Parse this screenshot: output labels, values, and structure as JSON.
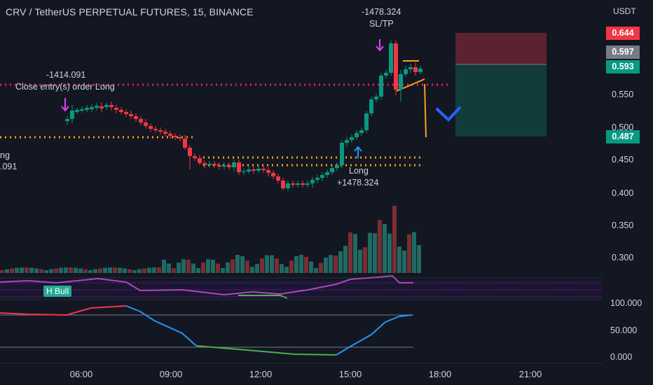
{
  "header": {
    "symbol_title": "CRV / TetherUS PERPETUAL FUTURES, 15, BINANCE",
    "currency": "USDT"
  },
  "price_axis": [
    "0.550",
    "0.500",
    "0.450",
    "0.400",
    "0.350",
    "0.300"
  ],
  "price_tags": [
    {
      "value": "0.644",
      "color": "#f23645"
    },
    {
      "value": "0.597",
      "color": "#787b86"
    },
    {
      "value": "0.593",
      "color": "#089981"
    },
    {
      "value": "0.487",
      "color": "#089981"
    }
  ],
  "oscillator_axis": [
    "100.000",
    "50.000",
    "0.000"
  ],
  "time_axis": [
    "06:00",
    "09:00",
    "12:00",
    "15:00",
    "18:00",
    "21:00"
  ],
  "annotations": {
    "top_pnl": "-1478.324",
    "top_sl_tp": "SL/TP",
    "close_pnl": "-1414.091",
    "close_label": "Close entry(s) order Long",
    "left_partial_1": "ng",
    "left_partial_2": ".091",
    "long_label": "Long",
    "long_pnl": "+1478.324"
  },
  "indicator": {
    "badge": "H Bull"
  },
  "colors": {
    "up": "#089981",
    "down": "#f23645",
    "background": "#131722",
    "stop_zone": "#5b2330",
    "target_zone": "#123c3a",
    "chevron": "#2962ff"
  },
  "icons": [
    "down-arrow-icon",
    "up-arrow-icon",
    "chevron-down-icon"
  ]
}
